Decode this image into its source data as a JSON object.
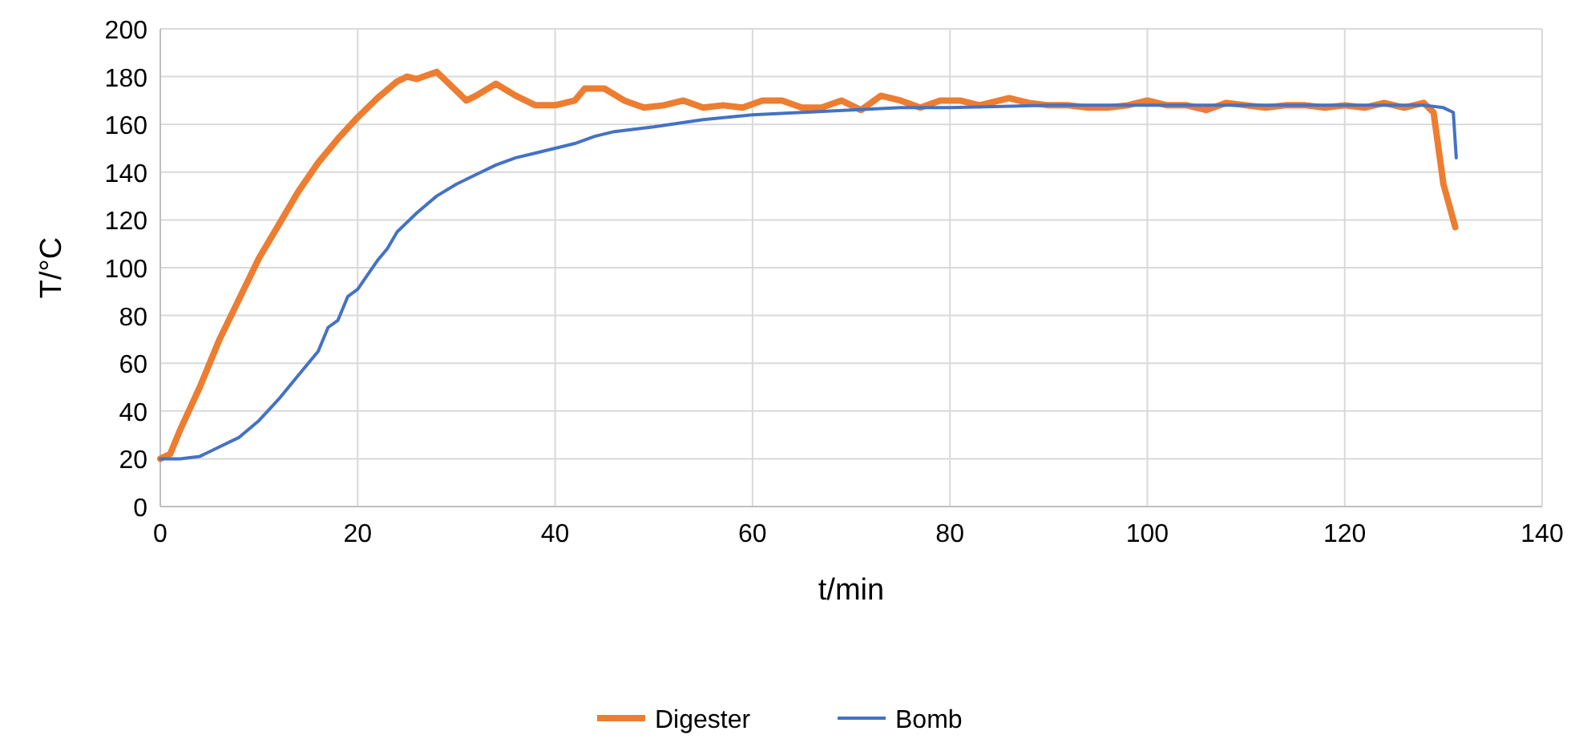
{
  "chart_data": {
    "type": "line",
    "xlabel": "t/min",
    "ylabel": "T/°C",
    "xlim": [
      0,
      140
    ],
    "xticks": [
      0,
      20,
      40,
      60,
      80,
      100,
      120,
      140
    ],
    "ylim": [
      0,
      200
    ],
    "yticks": [
      0,
      20,
      40,
      60,
      80,
      100,
      120,
      140,
      160,
      180,
      200
    ],
    "grid": true,
    "legend": "bottom",
    "marker": "none",
    "line_style": "solid",
    "series": [
      {
        "name": "Digester",
        "color": "#ed7d31",
        "x": [
          0,
          1,
          2,
          4,
          6,
          8,
          10,
          12,
          14,
          16,
          18,
          20,
          22,
          24,
          25,
          26,
          28,
          30,
          31,
          32,
          34,
          36,
          38,
          40,
          42,
          43,
          45,
          47,
          49,
          51,
          53,
          55,
          57,
          59,
          61,
          63,
          65,
          67,
          69,
          71,
          73,
          75,
          77,
          79,
          81,
          83,
          86,
          88,
          90,
          92,
          94,
          96,
          98,
          100,
          102,
          104,
          106,
          108,
          110,
          112,
          114,
          116,
          118,
          120,
          122,
          124,
          126,
          128,
          129,
          130,
          131.2
        ],
        "values": [
          20,
          22,
          32,
          50,
          70,
          87,
          104,
          118,
          132,
          144,
          154,
          163,
          171,
          178,
          180,
          179,
          182,
          174,
          170,
          172,
          177,
          172,
          168,
          168,
          170,
          175,
          175,
          170,
          167,
          168,
          170,
          167,
          168,
          167,
          170,
          170,
          167,
          167,
          170,
          166,
          172,
          170,
          167,
          170,
          170,
          168,
          171,
          169,
          168,
          168,
          167,
          167,
          168,
          170,
          168,
          168,
          166,
          169,
          168,
          167,
          168,
          168,
          167,
          168,
          167,
          169,
          167,
          169,
          165,
          135,
          117
        ]
      },
      {
        "name": "Bomb",
        "color": "#4472c4",
        "x": [
          0,
          2,
          4,
          6,
          8,
          10,
          12,
          14,
          16,
          17,
          18,
          19,
          20,
          21,
          22,
          23,
          24,
          26,
          28,
          30,
          32,
          34,
          36,
          38,
          40,
          42,
          44,
          46,
          48,
          50,
          55,
          60,
          65,
          70,
          75,
          80,
          90,
          100,
          110,
          120,
          128,
          130,
          131,
          131.3
        ],
        "values": [
          20,
          20,
          21,
          25,
          29,
          36,
          45,
          55,
          65,
          75,
          78,
          88,
          91,
          97,
          103,
          108,
          115,
          123,
          130,
          135,
          139,
          143,
          146,
          148,
          150,
          152,
          155,
          157,
          158,
          159,
          162,
          164,
          165,
          166,
          167,
          167,
          168,
          168,
          168,
          168,
          168,
          167,
          165,
          146
        ]
      }
    ]
  }
}
